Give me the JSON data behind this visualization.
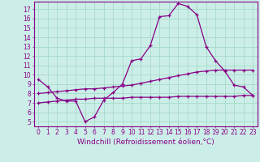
{
  "title": "",
  "xlabel": "Windchill (Refroidissement éolien,°C)",
  "ylabel": "",
  "background_color": "#cceee8",
  "grid_color": "#aaddcc",
  "line_color": "#880088",
  "xlim": [
    -0.5,
    23.5
  ],
  "ylim": [
    4.5,
    17.8
  ],
  "xticks": [
    0,
    1,
    2,
    3,
    4,
    5,
    6,
    7,
    8,
    9,
    10,
    11,
    12,
    13,
    14,
    15,
    16,
    17,
    18,
    19,
    20,
    21,
    22,
    23
  ],
  "yticks": [
    5,
    6,
    7,
    8,
    9,
    10,
    11,
    12,
    13,
    14,
    15,
    16,
    17
  ],
  "line1_x": [
    0,
    1,
    2,
    3,
    4,
    5,
    6,
    7,
    8,
    9,
    10,
    11,
    12,
    13,
    14,
    15,
    16,
    17,
    18,
    19,
    20,
    21,
    22,
    23
  ],
  "line1_y": [
    9.5,
    8.7,
    7.5,
    7.2,
    7.2,
    5.0,
    5.5,
    7.3,
    8.1,
    9.0,
    11.5,
    11.7,
    13.1,
    16.2,
    16.3,
    17.6,
    17.3,
    16.4,
    13.0,
    11.5,
    10.4,
    8.9,
    8.7,
    7.8
  ],
  "line2_x": [
    0,
    1,
    2,
    3,
    4,
    5,
    6,
    7,
    8,
    9,
    10,
    11,
    12,
    13,
    14,
    15,
    16,
    17,
    18,
    19,
    20,
    21,
    22,
    23
  ],
  "line2_y": [
    8.0,
    8.1,
    8.2,
    8.3,
    8.4,
    8.5,
    8.5,
    8.6,
    8.7,
    8.8,
    8.9,
    9.1,
    9.3,
    9.5,
    9.7,
    9.9,
    10.1,
    10.3,
    10.4,
    10.5,
    10.5,
    10.5,
    10.5,
    10.5
  ],
  "line3_x": [
    0,
    1,
    2,
    3,
    4,
    5,
    6,
    7,
    8,
    9,
    10,
    11,
    12,
    13,
    14,
    15,
    16,
    17,
    18,
    19,
    20,
    21,
    22,
    23
  ],
  "line3_y": [
    7.0,
    7.1,
    7.2,
    7.3,
    7.4,
    7.4,
    7.5,
    7.5,
    7.5,
    7.5,
    7.6,
    7.6,
    7.6,
    7.6,
    7.6,
    7.7,
    7.7,
    7.7,
    7.7,
    7.7,
    7.7,
    7.7,
    7.8,
    7.8
  ],
  "tick_fontsize": 5.5,
  "xlabel_fontsize": 6.5
}
